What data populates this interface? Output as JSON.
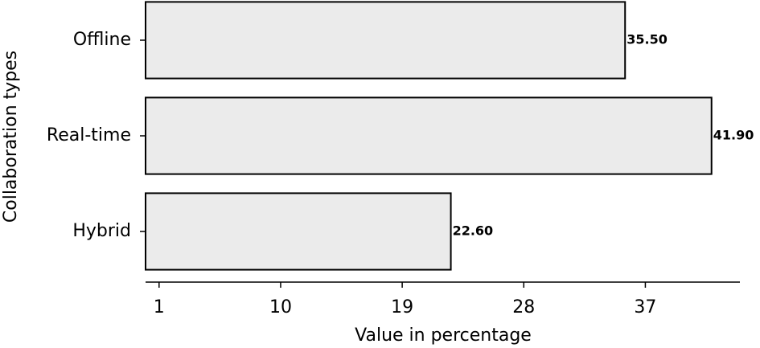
{
  "chart_data": {
    "type": "barh",
    "categories": [
      "Offline",
      "Real-time",
      "Hybrid"
    ],
    "values": [
      35.5,
      41.9,
      22.6
    ],
    "value_labels": [
      "35.50",
      "41.90",
      "22.60"
    ],
    "color": "#ebebeb",
    "xlabel": "Value in percentage",
    "ylabel": "Collaboration types",
    "xlim": [
      0,
      44
    ],
    "xticks": [
      1,
      10,
      19,
      28,
      37
    ]
  }
}
